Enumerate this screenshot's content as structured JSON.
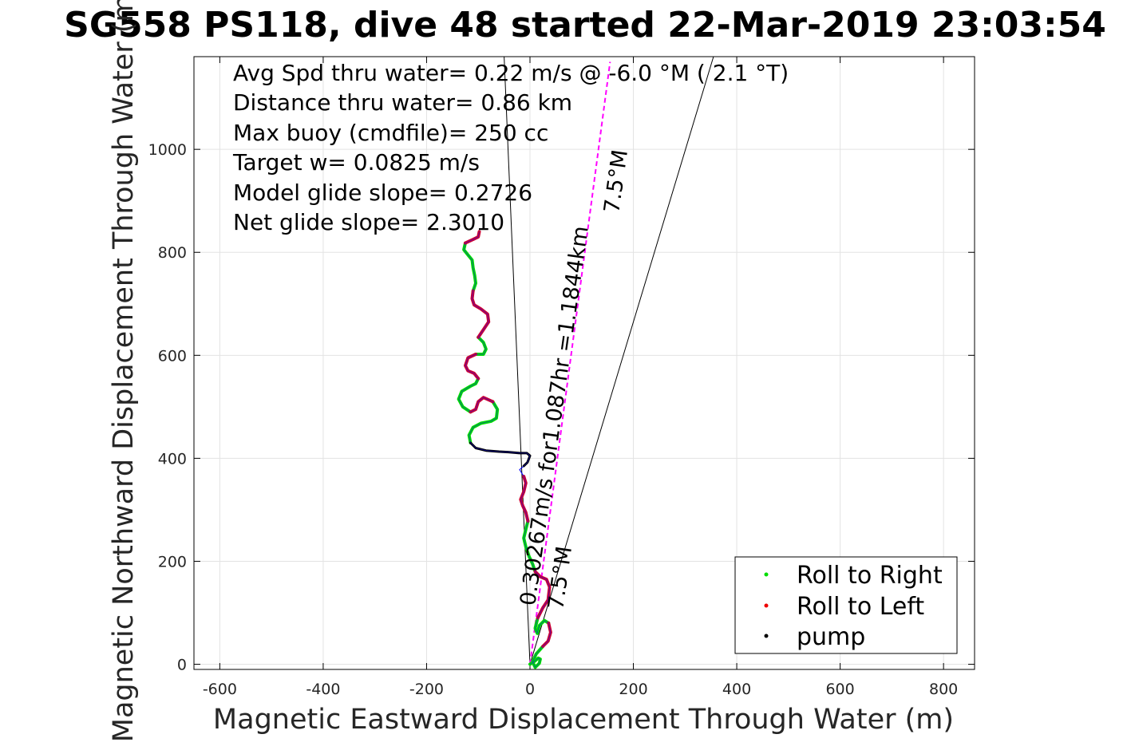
{
  "chart_data": {
    "type": "line",
    "title": "SG558 PS118, dive 48 started 22-Mar-2019 23:03:54",
    "xlabel": "Magnetic Eastward Displacement Through Water (m)",
    "ylabel": "Magnetic Northward Displacement Through Water (m)",
    "xlim": [
      -650,
      860
    ],
    "ylim": [
      -10,
      1180
    ],
    "xticks": [
      -600,
      -400,
      -200,
      0,
      200,
      400,
      600,
      800
    ],
    "yticks": [
      0,
      200,
      400,
      600,
      800,
      1000
    ],
    "grid": true,
    "legend_position": "bottom-right",
    "annotations": [
      "Avg Spd thru water=  0.22 m/s @  -6.0 °M (  2.1 °T)",
      "Distance thru water=  0.86 km",
      "Max buoy (cmdfile)= 250 cc",
      "Target w= 0.0825 m/s",
      "Model glide slope= 0.2726",
      "Net glide slope= 2.3010"
    ],
    "rotated_labels": {
      "course_label": "0.30267m/s for1.087hr =1.1844km",
      "heading_top": "7.5°M",
      "heading_bottom": "7.5°M"
    },
    "series": [
      {
        "name": "Roll to Right",
        "color": "#00dd00",
        "marker": "dot"
      },
      {
        "name": "Roll to Left",
        "color": "#ee0000",
        "marker": "dot"
      },
      {
        "name": "pump",
        "color": "#000000",
        "marker": "dot"
      }
    ],
    "track": {
      "color": "#0000ff",
      "points": [
        [
          0,
          0
        ],
        [
          8,
          5
        ],
        [
          16,
          12
        ],
        [
          20,
          10
        ],
        [
          18,
          2
        ],
        [
          10,
          -6
        ],
        [
          5,
          5
        ],
        [
          12,
          20
        ],
        [
          25,
          35
        ],
        [
          35,
          45
        ],
        [
          40,
          62
        ],
        [
          36,
          80
        ],
        [
          28,
          85
        ],
        [
          18,
          75
        ],
        [
          14,
          60
        ],
        [
          10,
          70
        ],
        [
          15,
          90
        ],
        [
          25,
          110
        ],
        [
          35,
          125
        ],
        [
          38,
          150
        ],
        [
          32,
          165
        ],
        [
          20,
          170
        ],
        [
          10,
          180
        ],
        [
          5,
          195
        ],
        [
          -2,
          210
        ],
        [
          -8,
          228
        ],
        [
          -12,
          245
        ],
        [
          -8,
          262
        ],
        [
          -4,
          278
        ],
        [
          -8,
          295
        ],
        [
          -14,
          308
        ],
        [
          -18,
          320
        ],
        [
          -12,
          335
        ],
        [
          -8,
          352
        ],
        [
          -12,
          365
        ],
        [
          -20,
          378
        ],
        [
          -12,
          385
        ],
        [
          -5,
          392
        ],
        [
          0,
          405
        ],
        [
          -6,
          410
        ],
        [
          -20,
          410
        ],
        [
          -40,
          412
        ],
        [
          -60,
          413
        ],
        [
          -85,
          415
        ],
        [
          -105,
          420
        ],
        [
          -115,
          430
        ],
        [
          -118,
          445
        ],
        [
          -110,
          460
        ],
        [
          -95,
          468
        ],
        [
          -75,
          472
        ],
        [
          -65,
          478
        ],
        [
          -63,
          495
        ],
        [
          -72,
          510
        ],
        [
          -90,
          518
        ],
        [
          -100,
          510
        ],
        [
          -105,
          495
        ],
        [
          -115,
          490
        ],
        [
          -130,
          500
        ],
        [
          -138,
          515
        ],
        [
          -132,
          530
        ],
        [
          -115,
          540
        ],
        [
          -105,
          545
        ],
        [
          -100,
          555
        ],
        [
          -108,
          565
        ],
        [
          -120,
          570
        ],
        [
          -125,
          580
        ],
        [
          -120,
          595
        ],
        [
          -105,
          602
        ],
        [
          -90,
          602
        ],
        [
          -85,
          612
        ],
        [
          -90,
          625
        ],
        [
          -100,
          635
        ],
        [
          -90,
          650
        ],
        [
          -80,
          665
        ],
        [
          -82,
          680
        ],
        [
          -95,
          690
        ],
        [
          -108,
          698
        ],
        [
          -112,
          710
        ],
        [
          -110,
          725
        ],
        [
          -105,
          740
        ],
        [
          -107,
          755
        ],
        [
          -110,
          770
        ],
        [
          -112,
          785
        ],
        [
          -120,
          795
        ],
        [
          -128,
          805
        ],
        [
          -125,
          818
        ],
        [
          -110,
          825
        ],
        [
          -100,
          830
        ],
        [
          -98,
          840
        ]
      ],
      "roll_right_ranges": [
        [
          0,
          8
        ],
        [
          11,
          16
        ],
        [
          22,
          28
        ],
        [
          45,
          52
        ],
        [
          56,
          62
        ],
        [
          67,
          71
        ],
        [
          78,
          85
        ]
      ],
      "roll_left_ranges": [
        [
          8,
          11
        ],
        [
          16,
          22
        ],
        [
          28,
          34
        ],
        [
          52,
          56
        ],
        [
          62,
          67
        ],
        [
          71,
          78
        ],
        [
          85,
          89
        ]
      ],
      "pump_ranges": [
        [
          36,
          45
        ]
      ]
    },
    "reference_lines": [
      {
        "from": [
          0,
          0
        ],
        "to": [
          -50,
          1180
        ],
        "color": "#000000"
      },
      {
        "from": [
          0,
          0
        ],
        "to": [
          355,
          1180
        ],
        "color": "#000000"
      },
      {
        "from": [
          0,
          0
        ],
        "to": [
          155,
          1170
        ],
        "color": "#ff00ff",
        "dashed": true
      }
    ]
  }
}
